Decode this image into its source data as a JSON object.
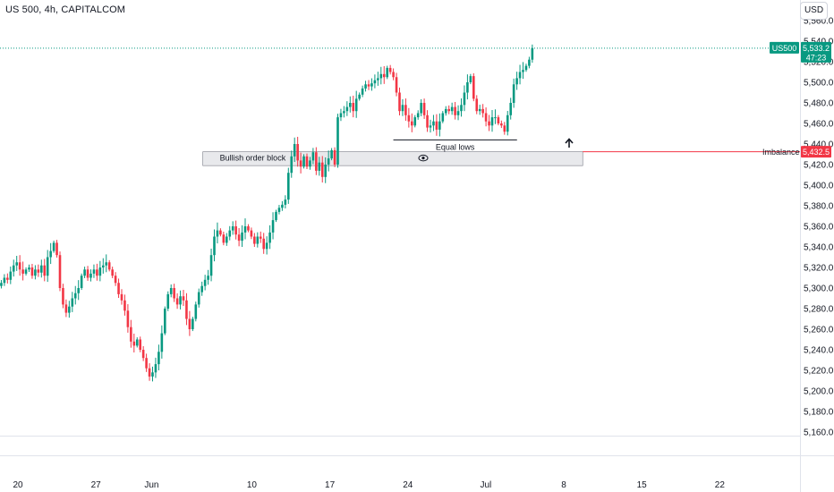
{
  "header": {
    "title": "US 500, 4h, CAPITALCOM",
    "currency_button": "USD"
  },
  "colors": {
    "up": "#089981",
    "down": "#f23645",
    "imbalance": "#f23645",
    "order_block_fill": "#e8e9ec",
    "order_block_border": "#787b86"
  },
  "chart_data": {
    "type": "candlestick",
    "title": "US 500, 4h, CAPITALCOM",
    "xlabel": "",
    "ylabel": "",
    "ylim": [
      5160,
      5560
    ],
    "y_ticks": [
      "5,160.0",
      "5,180.0",
      "5,200.0",
      "5,220.0",
      "5,240.0",
      "5,260.0",
      "5,280.0",
      "5,300.0",
      "5,320.0",
      "5,340.0",
      "5,360.0",
      "5,380.0",
      "5,400.0",
      "5,420.0",
      "5,440.0",
      "5,460.0",
      "5,480.0",
      "5,500.0",
      "5,520.0",
      "5,540.0",
      "5,560.0"
    ],
    "x_ticks": [
      "20",
      "27",
      "Jun",
      "10",
      "17",
      "24",
      "Jul",
      "8",
      "15",
      "22"
    ],
    "grid": false,
    "last_price": {
      "symbol": "US500",
      "value": "5,533.2",
      "countdown": "47:23"
    },
    "imbalance": {
      "label": "Imbalance",
      "value": "5,432.5",
      "price": 5432.5
    },
    "order_block": {
      "label": "Bullish order block",
      "top": 5432.5,
      "bottom": 5419,
      "from_day": 16.6,
      "to_day": 50.7
    },
    "equal_lows": {
      "label": "Equal lows",
      "price": 5444,
      "from_day": 33.7,
      "to_day": 44.8
    },
    "closes": [
      5302,
      5305,
      5310,
      5308,
      5316,
      5322,
      5325,
      5318,
      5314,
      5318,
      5320,
      5312,
      5318,
      5315,
      5322,
      5312,
      5330,
      5336,
      5344,
      5332,
      5300,
      5284,
      5276,
      5282,
      5290,
      5295,
      5300,
      5312,
      5318,
      5310,
      5314,
      5318,
      5312,
      5320,
      5322,
      5325,
      5318,
      5312,
      5305,
      5294,
      5288,
      5278,
      5262,
      5248,
      5244,
      5250,
      5240,
      5232,
      5222,
      5214,
      5218,
      5226,
      5238,
      5256,
      5280,
      5294,
      5300,
      5290,
      5284,
      5292,
      5288,
      5270,
      5260,
      5270,
      5284,
      5296,
      5302,
      5308,
      5312,
      5332,
      5350,
      5356,
      5352,
      5344,
      5350,
      5356,
      5360,
      5352,
      5346,
      5354,
      5360,
      5356,
      5350,
      5343,
      5350,
      5348,
      5338,
      5344,
      5354,
      5366,
      5374,
      5378,
      5381,
      5386,
      5412,
      5428,
      5440,
      5424,
      5418,
      5428,
      5418,
      5424,
      5432,
      5414,
      5422,
      5408,
      5420,
      5426,
      5434,
      5420,
      5466,
      5470,
      5472,
      5476,
      5480,
      5472,
      5484,
      5488,
      5494,
      5498,
      5496,
      5499,
      5502,
      5504,
      5508,
      5505,
      5514,
      5510,
      5505,
      5490,
      5472,
      5478,
      5468,
      5462,
      5458,
      5466,
      5470,
      5480,
      5468,
      5456,
      5458,
      5462,
      5454,
      5462,
      5470,
      5474,
      5472,
      5476,
      5468,
      5472,
      5478,
      5490,
      5500,
      5506,
      5484,
      5472,
      5474,
      5470,
      5462,
      5458,
      5466,
      5466,
      5460,
      5458,
      5452,
      5468,
      5480,
      5498,
      5504,
      5510,
      5512,
      5516,
      5522,
      5533.2
    ]
  }
}
